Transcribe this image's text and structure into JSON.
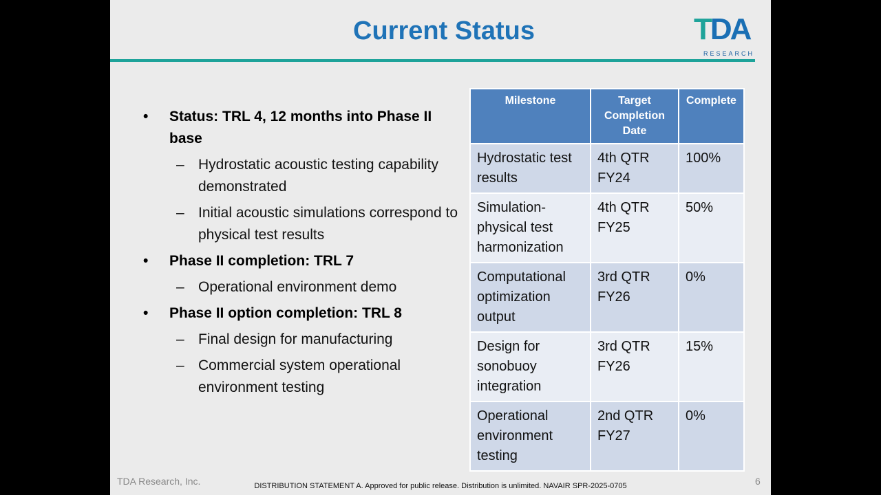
{
  "header": {
    "title": "Current Status",
    "logo": {
      "main_a": "T",
      "main_b": "DA",
      "sub": "RESEARCH"
    }
  },
  "bullets": [
    {
      "level": 1,
      "text": "Status: TRL 4, 12 months into Phase II base"
    },
    {
      "level": 2,
      "text": "Hydrostatic acoustic testing capability demonstrated"
    },
    {
      "level": 2,
      "text": "Initial acoustic simulations correspond to physical test results"
    },
    {
      "level": 1,
      "text": "Phase II completion: TRL 7"
    },
    {
      "level": 2,
      "text": "Operational environment demo"
    },
    {
      "level": 1,
      "text": "Phase II option completion: TRL 8"
    },
    {
      "level": 2,
      "text": "Final design for manufacturing"
    },
    {
      "level": 2,
      "text": "Commercial system operational environment testing"
    }
  ],
  "table": {
    "headers": [
      "Milestone",
      "Target Completion Date",
      "Complete"
    ],
    "rows": [
      [
        "Hydrostatic test results",
        "4th QTR FY24",
        "100%"
      ],
      [
        "Simulation-physical test harmonization",
        "4th QTR FY25",
        "50%"
      ],
      [
        "Computational optimization output",
        "3rd QTR FY26",
        "0%"
      ],
      [
        "Design for sonobuoy integration",
        "3rd QTR FY26",
        "15%"
      ],
      [
        "Operational environment testing",
        "2nd QTR FY27",
        "0%"
      ]
    ]
  },
  "footer": {
    "left": "TDA Research, Inc.",
    "center": "DISTRIBUTION STATEMENT A. Approved for public release. Distribution is unlimited. NAVAIR SPR-2025-0705",
    "page": "6"
  }
}
